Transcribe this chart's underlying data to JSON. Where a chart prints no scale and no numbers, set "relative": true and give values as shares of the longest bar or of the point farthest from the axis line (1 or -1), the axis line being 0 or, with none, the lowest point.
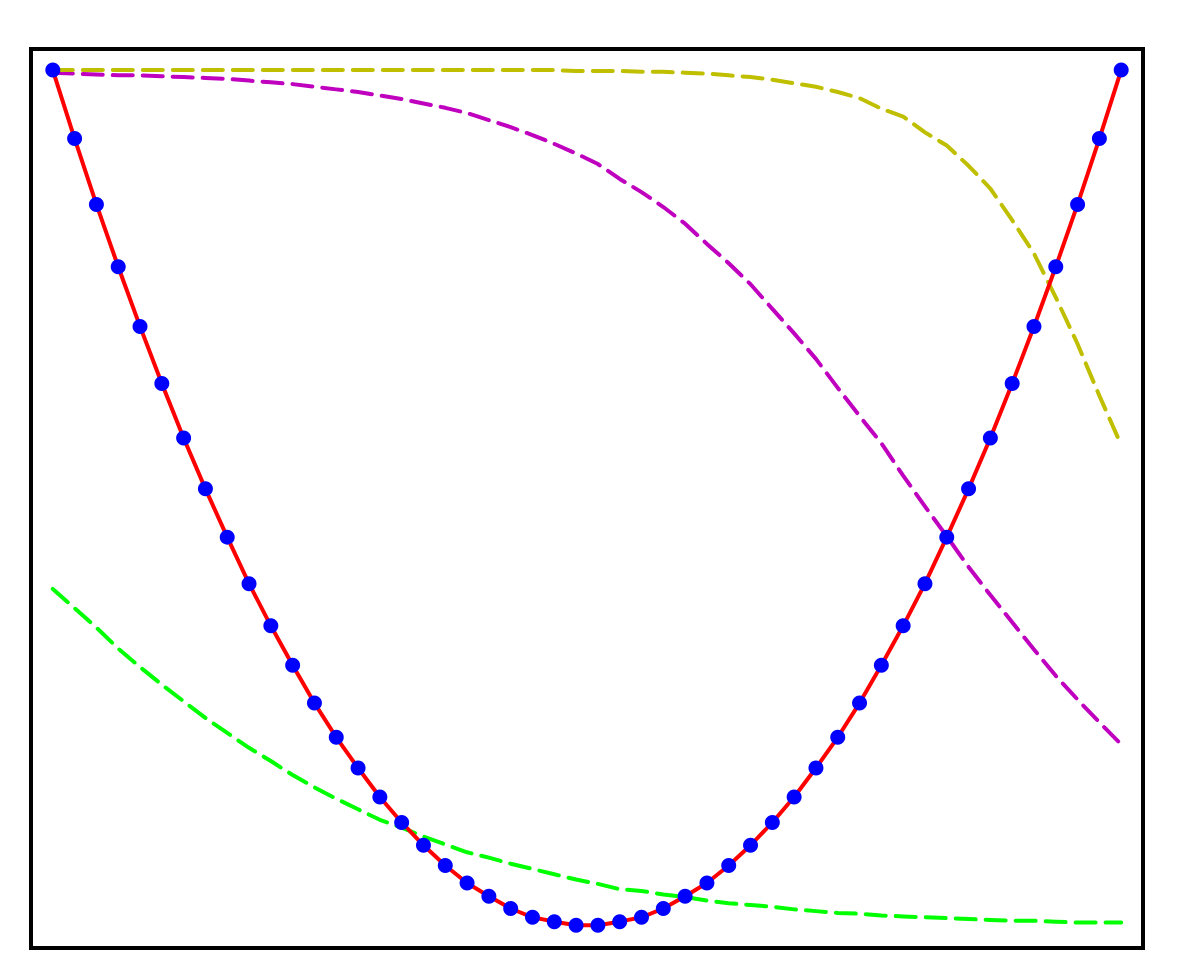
{
  "chart_data": {
    "type": "line",
    "relative": true,
    "categories": [
      null,
      null,
      null,
      null,
      null,
      null,
      null,
      null,
      null,
      null,
      null,
      null,
      null,
      null,
      null,
      null,
      null,
      null,
      null,
      null,
      null,
      null,
      null,
      null,
      null,
      null,
      null,
      null,
      null,
      null,
      null,
      null,
      null,
      null,
      null,
      null,
      null,
      null,
      null,
      null,
      null,
      null,
      null,
      null,
      null,
      null,
      null,
      null,
      null,
      null
    ],
    "series": [
      {
        "type": "line",
        "color": "#00ff00",
        "line_style": "dashed",
        "marker": "none",
        "values": [
          0.409,
          0.387,
          0.365,
          0.341,
          0.32,
          0.3,
          0.281,
          0.262,
          0.245,
          0.228,
          0.213,
          0.197,
          0.183,
          0.17,
          0.158,
          0.146,
          0.137,
          0.127,
          0.118,
          0.109,
          0.103,
          0.096,
          0.09,
          0.084,
          0.078,
          0.073,
          0.067,
          0.065,
          0.061,
          0.058,
          0.054,
          0.051,
          0.049,
          0.047,
          0.044,
          0.042,
          0.04,
          0.039,
          0.037,
          0.036,
          0.035,
          0.034,
          0.033,
          0.032,
          0.031,
          0.031,
          0.03,
          0.029,
          0.029,
          0.029
        ]
      },
      {
        "type": "line",
        "color": "#bf00bf",
        "line_style": "dashed",
        "marker": "none",
        "values": [
          0.997,
          0.996,
          0.995,
          0.994,
          0.994,
          0.993,
          0.992,
          0.991,
          0.99,
          0.988,
          0.986,
          0.984,
          0.981,
          0.978,
          0.975,
          0.971,
          0.967,
          0.962,
          0.957,
          0.951,
          0.943,
          0.935,
          0.926,
          0.916,
          0.905,
          0.893,
          0.876,
          0.861,
          0.844,
          0.825,
          0.802,
          0.78,
          0.756,
          0.728,
          0.7,
          0.671,
          0.638,
          0.606,
          0.575,
          0.538,
          0.503,
          0.469,
          0.434,
          0.402,
          0.371,
          0.34,
          0.31,
          0.283,
          0.257,
          0.232
        ]
      },
      {
        "type": "line",
        "color": "#bfbf00",
        "line_style": "dashed",
        "marker": "none",
        "values": [
          1.0,
          1.0,
          1.0,
          1.0,
          1.0,
          1.0,
          1.0,
          1.0,
          1.0,
          1.0,
          1.0,
          1.0,
          1.0,
          1.0,
          1.0,
          1.0,
          1.0,
          1.0,
          1.0,
          1.0,
          1.0,
          1.0,
          1.0,
          1.0,
          0.999,
          0.999,
          0.999,
          0.998,
          0.998,
          0.997,
          0.996,
          0.994,
          0.992,
          0.989,
          0.985,
          0.981,
          0.975,
          0.968,
          0.956,
          0.947,
          0.929,
          0.914,
          0.891,
          0.865,
          0.829,
          0.791,
          0.741,
          0.688,
          0.629,
          0.573
        ]
      },
      {
        "type": "line",
        "color": "#ff0000",
        "line_style": "solid",
        "marker": "circle",
        "colors": [
          "#0000ff",
          "#0000ff",
          "#0000ff",
          "#0000ff",
          "#0000ff",
          "#0000ff",
          "#0000ff",
          "#0000ff",
          "#0000ff",
          "#0000ff",
          "#0000ff",
          "#0000ff",
          "#0000ff",
          "#0000ff",
          "#0000ff",
          "#0000ff",
          "#0000ff",
          "#0000ff",
          "#0000ff",
          "#0000ff",
          "#0000ff",
          "#0000ff",
          "#0000ff",
          "#0000ff",
          "#0000ff",
          "#0000ff",
          "#0000ff",
          "#0000ff",
          "#0000ff",
          "#0000ff",
          "#0000ff",
          "#0000ff",
          "#0000ff",
          "#0000ff",
          "#0000ff",
          "#0000ff",
          "#0000ff",
          "#0000ff",
          "#0000ff",
          "#0000ff",
          "#0000ff",
          "#0000ff",
          "#0000ff",
          "#0000ff",
          "#0000ff",
          "#0000ff",
          "#0000ff",
          "#0000ff",
          "#0000ff",
          "#0000ff"
        ],
        "values": [
          1.0,
          0.922,
          0.847,
          0.776,
          0.708,
          0.643,
          0.581,
          0.523,
          0.468,
          0.415,
          0.367,
          0.322,
          0.279,
          0.24,
          0.205,
          0.172,
          0.143,
          0.117,
          0.094,
          0.074,
          0.059,
          0.045,
          0.035,
          0.03,
          0.026,
          0.026,
          0.03,
          0.035,
          0.045,
          0.059,
          0.074,
          0.094,
          0.117,
          0.143,
          0.172,
          0.205,
          0.24,
          0.279,
          0.322,
          0.367,
          0.415,
          0.468,
          0.523,
          0.581,
          0.643,
          0.708,
          0.776,
          0.847,
          0.922,
          1.0
        ]
      }
    ]
  }
}
